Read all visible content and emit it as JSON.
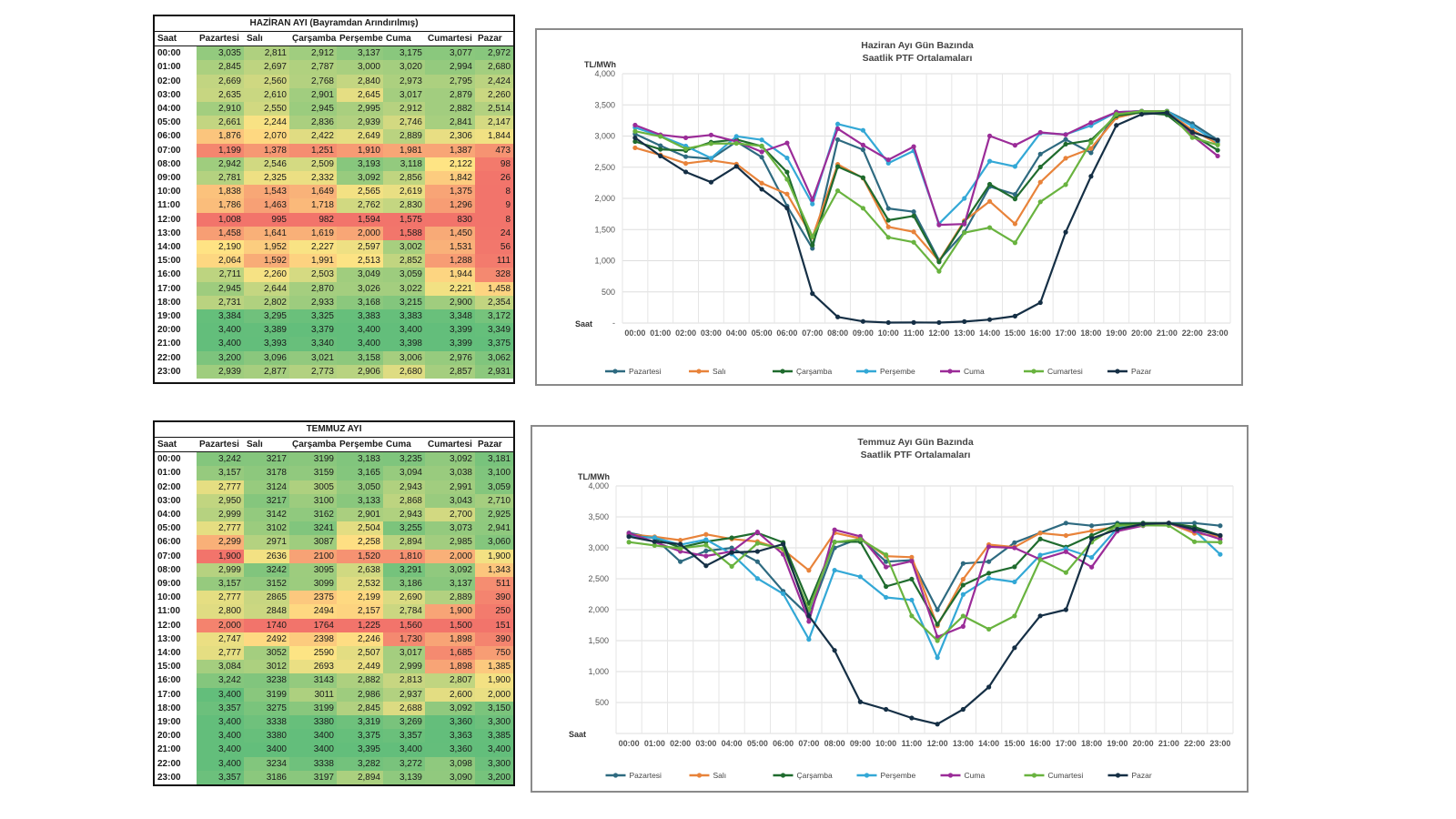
{
  "colors": {
    "Pazartesi": "#2e6a80",
    "Salı": "#e8833a",
    "Çarşamba": "#1f6b2e",
    "Perşembe": "#33a8d6",
    "Cuma": "#9b2c98",
    "Cumartesi": "#69b33f",
    "Pazar": "#152f45"
  },
  "tables": [
    {
      "title": "HAZİRAN AYI (Bayramdan Arındırılmış)",
      "headers": [
        "Saat",
        "Pazartesi",
        "Salı",
        "Çarşamba",
        "Perşembe",
        "Cuma",
        "Cumartesi",
        "Pazar"
      ],
      "rows": [
        [
          "00:00",
          "3,035",
          "2,811",
          "2,912",
          "3,137",
          "3,175",
          "3,077",
          "2,972"
        ],
        [
          "01:00",
          "2,845",
          "2,697",
          "2,787",
          "3,000",
          "3,020",
          "2,994",
          "2,680"
        ],
        [
          "02:00",
          "2,669",
          "2,560",
          "2,768",
          "2,840",
          "2,973",
          "2,795",
          "2,424"
        ],
        [
          "03:00",
          "2,635",
          "2,610",
          "2,901",
          "2,645",
          "3,017",
          "2,879",
          "2,260"
        ],
        [
          "04:00",
          "2,910",
          "2,550",
          "2,945",
          "2,995",
          "2,912",
          "2,882",
          "2,514"
        ],
        [
          "05:00",
          "2,661",
          "2,244",
          "2,836",
          "2,939",
          "2,746",
          "2,841",
          "2,147"
        ],
        [
          "06:00",
          "1,876",
          "2,070",
          "2,422",
          "2,649",
          "2,889",
          "2,306",
          "1,844"
        ],
        [
          "07:00",
          "1,199",
          "1,378",
          "1,251",
          "1,910",
          "1,981",
          "1,387",
          "473"
        ],
        [
          "08:00",
          "2,942",
          "2,546",
          "2,509",
          "3,193",
          "3,118",
          "2,122",
          "98"
        ],
        [
          "09:00",
          "2,781",
          "2,325",
          "2,332",
          "3,092",
          "2,856",
          "1,842",
          "26"
        ],
        [
          "10:00",
          "1,838",
          "1,543",
          "1,649",
          "2,565",
          "2,619",
          "1,375",
          "8"
        ],
        [
          "11:00",
          "1,786",
          "1,463",
          "1,718",
          "2,762",
          "2,830",
          "1,296",
          "9"
        ],
        [
          "12:00",
          "1,008",
          "995",
          "982",
          "1,594",
          "1,575",
          "830",
          "8"
        ],
        [
          "13:00",
          "1,458",
          "1,641",
          "1,619",
          "2,000",
          "1,588",
          "1,450",
          "24"
        ],
        [
          "14:00",
          "2,190",
          "1,952",
          "2,227",
          "2,597",
          "3,002",
          "1,531",
          "56"
        ],
        [
          "15:00",
          "2,064",
          "1,592",
          "1,991",
          "2,513",
          "2,852",
          "1,288",
          "111"
        ],
        [
          "16:00",
          "2,711",
          "2,260",
          "2,503",
          "3,049",
          "3,059",
          "1,944",
          "328"
        ],
        [
          "17:00",
          "2,945",
          "2,644",
          "2,870",
          "3,026",
          "3,022",
          "2,221",
          "1,458"
        ],
        [
          "18:00",
          "2,731",
          "2,802",
          "2,933",
          "3,168",
          "3,215",
          "2,900",
          "2,354"
        ],
        [
          "19:00",
          "3,384",
          "3,295",
          "3,325",
          "3,383",
          "3,383",
          "3,348",
          "3,172"
        ],
        [
          "20:00",
          "3,400",
          "3,389",
          "3,379",
          "3,400",
          "3,400",
          "3,399",
          "3,349"
        ],
        [
          "21:00",
          "3,400",
          "3,393",
          "3,340",
          "3,400",
          "3,398",
          "3,399",
          "3,375"
        ],
        [
          "22:00",
          "3,200",
          "3,096",
          "3,021",
          "3,158",
          "3,006",
          "2,976",
          "3,062"
        ],
        [
          "23:00",
          "2,939",
          "2,877",
          "2,773",
          "2,906",
          "2,680",
          "2,857",
          "2,931"
        ]
      ]
    },
    {
      "title": "TEMMUZ AYI",
      "headers": [
        "Saat",
        "Pazartesi",
        "Salı",
        "Çarşamba",
        "Perşembe",
        "Cuma",
        "Cumartesi",
        "Pazar"
      ],
      "rows": [
        [
          "00:00",
          "3,242",
          "3217",
          "3199",
          "3,183",
          "3,235",
          "3,092",
          "3,181"
        ],
        [
          "01:00",
          "3,157",
          "3178",
          "3159",
          "3,165",
          "3,094",
          "3,038",
          "3,100"
        ],
        [
          "02:00",
          "2,777",
          "3124",
          "3005",
          "3,050",
          "2,943",
          "2,991",
          "3,059"
        ],
        [
          "03:00",
          "2,950",
          "3217",
          "3100",
          "3,133",
          "2,868",
          "3,043",
          "2,710"
        ],
        [
          "04:00",
          "2,999",
          "3142",
          "3162",
          "2,901",
          "2,943",
          "2,700",
          "2,925"
        ],
        [
          "05:00",
          "2,777",
          "3102",
          "3241",
          "2,504",
          "3,255",
          "3,073",
          "2,941"
        ],
        [
          "06:00",
          "2,299",
          "2971",
          "3087",
          "2,258",
          "2,894",
          "2,985",
          "3,060"
        ],
        [
          "07:00",
          "1,900",
          "2636",
          "2100",
          "1,520",
          "1,810",
          "2,000",
          "1,900"
        ],
        [
          "08:00",
          "2,999",
          "3242",
          "3095",
          "2,638",
          "3,291",
          "3,092",
          "1,343"
        ],
        [
          "09:00",
          "3,157",
          "3152",
          "3099",
          "2,532",
          "3,186",
          "3,137",
          "511"
        ],
        [
          "10:00",
          "2,777",
          "2865",
          "2375",
          "2,199",
          "2,690",
          "2,889",
          "390"
        ],
        [
          "11:00",
          "2,800",
          "2848",
          "2494",
          "2,157",
          "2,784",
          "1,900",
          "250"
        ],
        [
          "12:00",
          "2,000",
          "1740",
          "1764",
          "1,225",
          "1,560",
          "1,500",
          "151"
        ],
        [
          "13:00",
          "2,747",
          "2492",
          "2398",
          "2,246",
          "1,730",
          "1,898",
          "390"
        ],
        [
          "14:00",
          "2,777",
          "3052",
          "2590",
          "2,507",
          "3,017",
          "1,685",
          "750"
        ],
        [
          "15:00",
          "3,084",
          "3012",
          "2693",
          "2,449",
          "2,999",
          "1,898",
          "1,385"
        ],
        [
          "16:00",
          "3,242",
          "3238",
          "3143",
          "2,882",
          "2,813",
          "2,807",
          "1,900"
        ],
        [
          "17:00",
          "3,400",
          "3199",
          "3011",
          "2,986",
          "2,937",
          "2,600",
          "2,000"
        ],
        [
          "18:00",
          "3,357",
          "3275",
          "3199",
          "2,845",
          "2,688",
          "3,092",
          "3,150"
        ],
        [
          "19:00",
          "3,400",
          "3338",
          "3380",
          "3,319",
          "3,269",
          "3,360",
          "3,300"
        ],
        [
          "20:00",
          "3,400",
          "3380",
          "3400",
          "3,375",
          "3,357",
          "3,363",
          "3,385"
        ],
        [
          "21:00",
          "3,400",
          "3400",
          "3400",
          "3,395",
          "3,400",
          "3,360",
          "3,400"
        ],
        [
          "22:00",
          "3,400",
          "3234",
          "3338",
          "3,282",
          "3,272",
          "3,098",
          "3,300"
        ],
        [
          "23:00",
          "3,357",
          "3186",
          "3197",
          "2,894",
          "3,139",
          "3,090",
          "3,200"
        ]
      ]
    }
  ],
  "chart_data": [
    {
      "type": "line",
      "title": "Haziran Ayı Gün Bazında",
      "subtitle": "Saatlik PTF Ortalamaları",
      "ylabel": "TL/MWh",
      "xlabel": "Saat",
      "ylim": [
        0,
        4000
      ],
      "yticks": [
        0,
        500,
        1000,
        1500,
        2000,
        2500,
        3000,
        3500,
        4000
      ],
      "ytick_labels": [
        "-",
        "500",
        "1,000",
        "1,500",
        "2,000",
        "2,500",
        "3,000",
        "3,500",
        "4,000"
      ],
      "legend_position": "bottom",
      "x": [
        "00:00",
        "01:00",
        "02:00",
        "03:00",
        "04:00",
        "05:00",
        "06:00",
        "07:00",
        "08:00",
        "09:00",
        "10:00",
        "11:00",
        "12:00",
        "13:00",
        "14:00",
        "15:00",
        "16:00",
        "17:00",
        "18:00",
        "19:00",
        "20:00",
        "21:00",
        "22:00",
        "23:00"
      ],
      "series": [
        {
          "name": "Pazartesi",
          "values": [
            3035,
            2845,
            2669,
            2635,
            2910,
            2661,
            1876,
            1199,
            2942,
            2781,
            1838,
            1786,
            1008,
            1458,
            2190,
            2064,
            2711,
            2945,
            2731,
            3384,
            3400,
            3400,
            3200,
            2939
          ]
        },
        {
          "name": "Salı",
          "values": [
            2811,
            2697,
            2560,
            2610,
            2550,
            2244,
            2070,
            1378,
            2546,
            2325,
            1543,
            1463,
            995,
            1641,
            1952,
            1592,
            2260,
            2644,
            2802,
            3295,
            3389,
            3393,
            3096,
            2877
          ]
        },
        {
          "name": "Çarşamba",
          "values": [
            2912,
            2787,
            2768,
            2901,
            2945,
            2836,
            2422,
            1251,
            2509,
            2332,
            1649,
            1718,
            982,
            1619,
            2227,
            1991,
            2503,
            2870,
            2933,
            3325,
            3379,
            3340,
            3021,
            2773
          ]
        },
        {
          "name": "Perşembe",
          "values": [
            3137,
            3000,
            2840,
            2645,
            2995,
            2939,
            2649,
            1910,
            3193,
            3092,
            2565,
            2762,
            1594,
            2000,
            2597,
            2513,
            3049,
            3026,
            3168,
            3383,
            3400,
            3400,
            3158,
            2906
          ]
        },
        {
          "name": "Cuma",
          "values": [
            3175,
            3020,
            2973,
            3017,
            2912,
            2746,
            2889,
            1981,
            3118,
            2856,
            2619,
            2830,
            1575,
            1588,
            3002,
            2852,
            3059,
            3022,
            3215,
            3383,
            3400,
            3398,
            3006,
            2680
          ]
        },
        {
          "name": "Cumartesi",
          "values": [
            3077,
            2994,
            2795,
            2879,
            2882,
            2841,
            2306,
            1387,
            2122,
            1842,
            1375,
            1296,
            830,
            1450,
            1531,
            1288,
            1944,
            2221,
            2900,
            3348,
            3399,
            3399,
            2976,
            2857
          ]
        },
        {
          "name": "Pazar",
          "values": [
            2972,
            2680,
            2424,
            2260,
            2514,
            2147,
            1844,
            473,
            98,
            26,
            8,
            9,
            8,
            24,
            56,
            111,
            328,
            1458,
            2354,
            3172,
            3349,
            3375,
            3062,
            2931
          ]
        }
      ]
    },
    {
      "type": "line",
      "title": "Temmuz Ayı Gün Bazında",
      "subtitle": "Saatlik PTF Ortalamaları",
      "ylabel": "TL/MWh",
      "xlabel": "Saat",
      "ylim": [
        0,
        4000
      ],
      "yticks": [
        0,
        500,
        1000,
        1500,
        2000,
        2500,
        3000,
        3500,
        4000
      ],
      "ytick_labels": [
        "",
        "500",
        "1,000",
        "1,500",
        "2,000",
        "2,500",
        "3,000",
        "3,500",
        "4,000"
      ],
      "legend_position": "bottom",
      "x": [
        "00:00",
        "01:00",
        "02:00",
        "03:00",
        "04:00",
        "05:00",
        "06:00",
        "07:00",
        "08:00",
        "09:00",
        "10:00",
        "11:00",
        "12:00",
        "13:00",
        "14:00",
        "15:00",
        "16:00",
        "17:00",
        "18:00",
        "19:00",
        "20:00",
        "21:00",
        "22:00",
        "23:00"
      ],
      "series": [
        {
          "name": "Pazartesi",
          "values": [
            3242,
            3157,
            2777,
            2950,
            2999,
            2777,
            2299,
            1900,
            2999,
            3157,
            2777,
            2800,
            2000,
            2747,
            2777,
            3084,
            3242,
            3400,
            3357,
            3400,
            3400,
            3400,
            3400,
            3357
          ]
        },
        {
          "name": "Salı",
          "values": [
            3217,
            3178,
            3124,
            3217,
            3142,
            3102,
            2971,
            2636,
            3242,
            3152,
            2865,
            2848,
            1740,
            2492,
            3052,
            3012,
            3238,
            3199,
            3275,
            3338,
            3380,
            3400,
            3234,
            3186
          ]
        },
        {
          "name": "Çarşamba",
          "values": [
            3199,
            3159,
            3005,
            3100,
            3162,
            3241,
            3087,
            2100,
            3095,
            3099,
            2375,
            2494,
            1764,
            2398,
            2590,
            2693,
            3143,
            3011,
            3199,
            3380,
            3400,
            3400,
            3338,
            3197
          ]
        },
        {
          "name": "Perşembe",
          "values": [
            3183,
            3165,
            3050,
            3133,
            2901,
            2504,
            2258,
            1520,
            2638,
            2532,
            2199,
            2157,
            1225,
            2246,
            2507,
            2449,
            2882,
            2986,
            2845,
            3319,
            3375,
            3395,
            3282,
            2894
          ]
        },
        {
          "name": "Cuma",
          "values": [
            3235,
            3094,
            2943,
            2868,
            2943,
            3255,
            2894,
            1810,
            3291,
            3186,
            2690,
            2784,
            1560,
            1730,
            3017,
            2999,
            2813,
            2937,
            2688,
            3269,
            3357,
            3400,
            3272,
            3139
          ]
        },
        {
          "name": "Cumartesi",
          "values": [
            3092,
            3038,
            2991,
            3043,
            2700,
            3073,
            2985,
            2000,
            3092,
            3137,
            2889,
            1900,
            1500,
            1898,
            1685,
            1898,
            2807,
            2600,
            3092,
            3360,
            3363,
            3360,
            3098,
            3090
          ]
        },
        {
          "name": "Pazar",
          "values": [
            3181,
            3100,
            3059,
            2710,
            2925,
            2941,
            3060,
            1900,
            1343,
            511,
            390,
            250,
            151,
            390,
            750,
            1385,
            1900,
            2000,
            3150,
            3300,
            3385,
            3400,
            3300,
            3200
          ]
        }
      ]
    }
  ]
}
